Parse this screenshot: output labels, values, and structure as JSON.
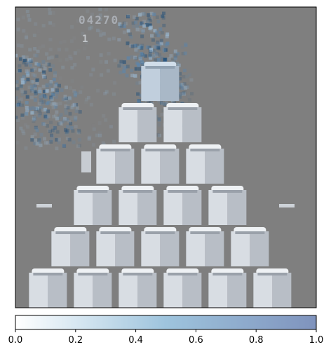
{
  "game": {
    "score": "04270",
    "lives_indicator": "1",
    "pyramid_rows": [
      1,
      2,
      3,
      4,
      5,
      6
    ]
  },
  "overlay": {
    "colormap_low": "#ffffff",
    "colormap_mid": "#9ec4dd",
    "colormap_high": "#7f93bd",
    "attention_spots": [
      {
        "col": 0.05,
        "row": 0.26,
        "intensity": 0.9
      },
      {
        "col": 0.42,
        "row": 0.12,
        "intensity": 1.0
      },
      {
        "col": 0.48,
        "row": 0.22,
        "intensity": 0.7
      },
      {
        "col": 0.13,
        "row": 0.36,
        "intensity": 0.6
      },
      {
        "col": 0.5,
        "row": 0.32,
        "intensity": 0.4
      }
    ]
  },
  "colorbar": {
    "ticks": [
      "0.0",
      "0.2",
      "0.4",
      "0.6",
      "0.8",
      "1.0"
    ],
    "tick_values": [
      0.0,
      0.2,
      0.4,
      0.6,
      0.8,
      1.0
    ]
  },
  "colors": {
    "background": "#7f7f7f",
    "cube_face_light": "#d8dde3",
    "cube_face_mid": "#b8bec6",
    "cube_top": "#eef1f4",
    "score_color": "#a9adb3"
  }
}
